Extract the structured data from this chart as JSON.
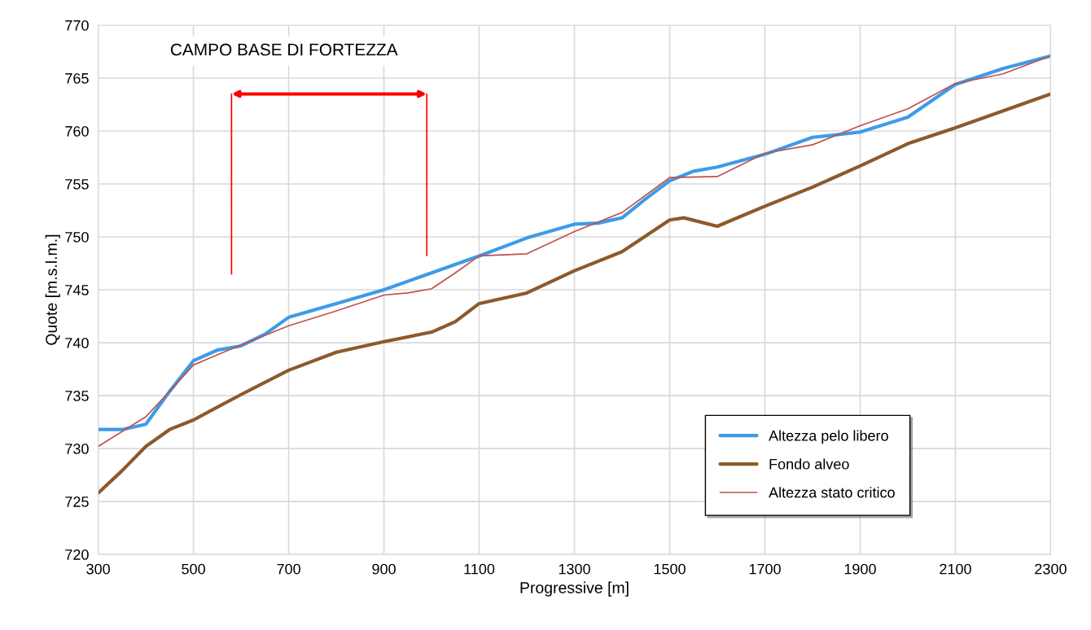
{
  "chart_data": {
    "type": "line",
    "xlabel": "Progressive [m]",
    "ylabel": "Quote [m.s.l.m.]",
    "xlim": [
      300,
      2300
    ],
    "xticks": [
      300,
      500,
      700,
      900,
      1100,
      1300,
      1500,
      1700,
      1900,
      2100,
      2300
    ],
    "ylim": [
      720,
      770
    ],
    "yticks": [
      720,
      725,
      730,
      735,
      740,
      745,
      750,
      755,
      760,
      765,
      770
    ],
    "grid": true,
    "legend": "bottom right",
    "marker": "none",
    "line_style": "solid",
    "series": [
      {
        "name": "Altezza pelo libero",
        "color": "#3d9be9",
        "x": [
          300,
          350,
          400,
          450,
          500,
          550,
          600,
          650,
          700,
          800,
          900,
          1000,
          1100,
          1200,
          1300,
          1350,
          1400,
          1450,
          1500,
          1550,
          1600,
          1700,
          1800,
          1900,
          2000,
          2100,
          2200,
          2300
        ],
        "values": [
          731.8,
          731.8,
          732.3,
          735.4,
          738.3,
          739.3,
          739.7,
          740.8,
          742.4,
          743.7,
          745.0,
          746.6,
          748.2,
          749.9,
          751.2,
          751.3,
          751.8,
          753.6,
          755.3,
          756.2,
          756.6,
          757.8,
          759.4,
          759.9,
          761.3,
          764.4,
          765.9,
          767.1
        ]
      },
      {
        "name": "Fondo alveo",
        "color": "#8c5a2b",
        "x": [
          300,
          350,
          400,
          450,
          500,
          600,
          700,
          800,
          900,
          1000,
          1050,
          1100,
          1200,
          1300,
          1400,
          1450,
          1500,
          1530,
          1600,
          1700,
          1800,
          1900,
          2000,
          2100,
          2200,
          2300
        ],
        "values": [
          725.8,
          727.9,
          730.2,
          731.8,
          732.7,
          735.1,
          737.4,
          739.1,
          740.1,
          741.0,
          742.0,
          743.7,
          744.7,
          746.8,
          748.6,
          750.1,
          751.6,
          751.8,
          751.0,
          752.9,
          754.7,
          756.7,
          758.8,
          760.3,
          761.9,
          763.5
        ]
      },
      {
        "name": "Altezza stato critico",
        "color": "#c0504d",
        "x": [
          300,
          400,
          450,
          500,
          600,
          700,
          800,
          900,
          950,
          1000,
          1050,
          1100,
          1200,
          1300,
          1400,
          1500,
          1600,
          1700,
          1800,
          1900,
          2000,
          2100,
          2200,
          2300
        ],
        "values": [
          730.2,
          733.0,
          735.4,
          737.9,
          739.8,
          741.6,
          743.0,
          744.5,
          744.7,
          745.1,
          746.6,
          748.2,
          748.4,
          750.5,
          752.3,
          755.6,
          755.7,
          757.9,
          758.7,
          760.5,
          762.1,
          764.5,
          765.4,
          767.1
        ]
      }
    ],
    "ref_lines": [
      {
        "axis": "x",
        "value": 580,
        "color": "#ff0000"
      },
      {
        "axis": "x",
        "value": 990,
        "color": "#ff0000"
      }
    ],
    "annotations": [
      "CAMPO BASE DI FORTEZZA"
    ]
  }
}
